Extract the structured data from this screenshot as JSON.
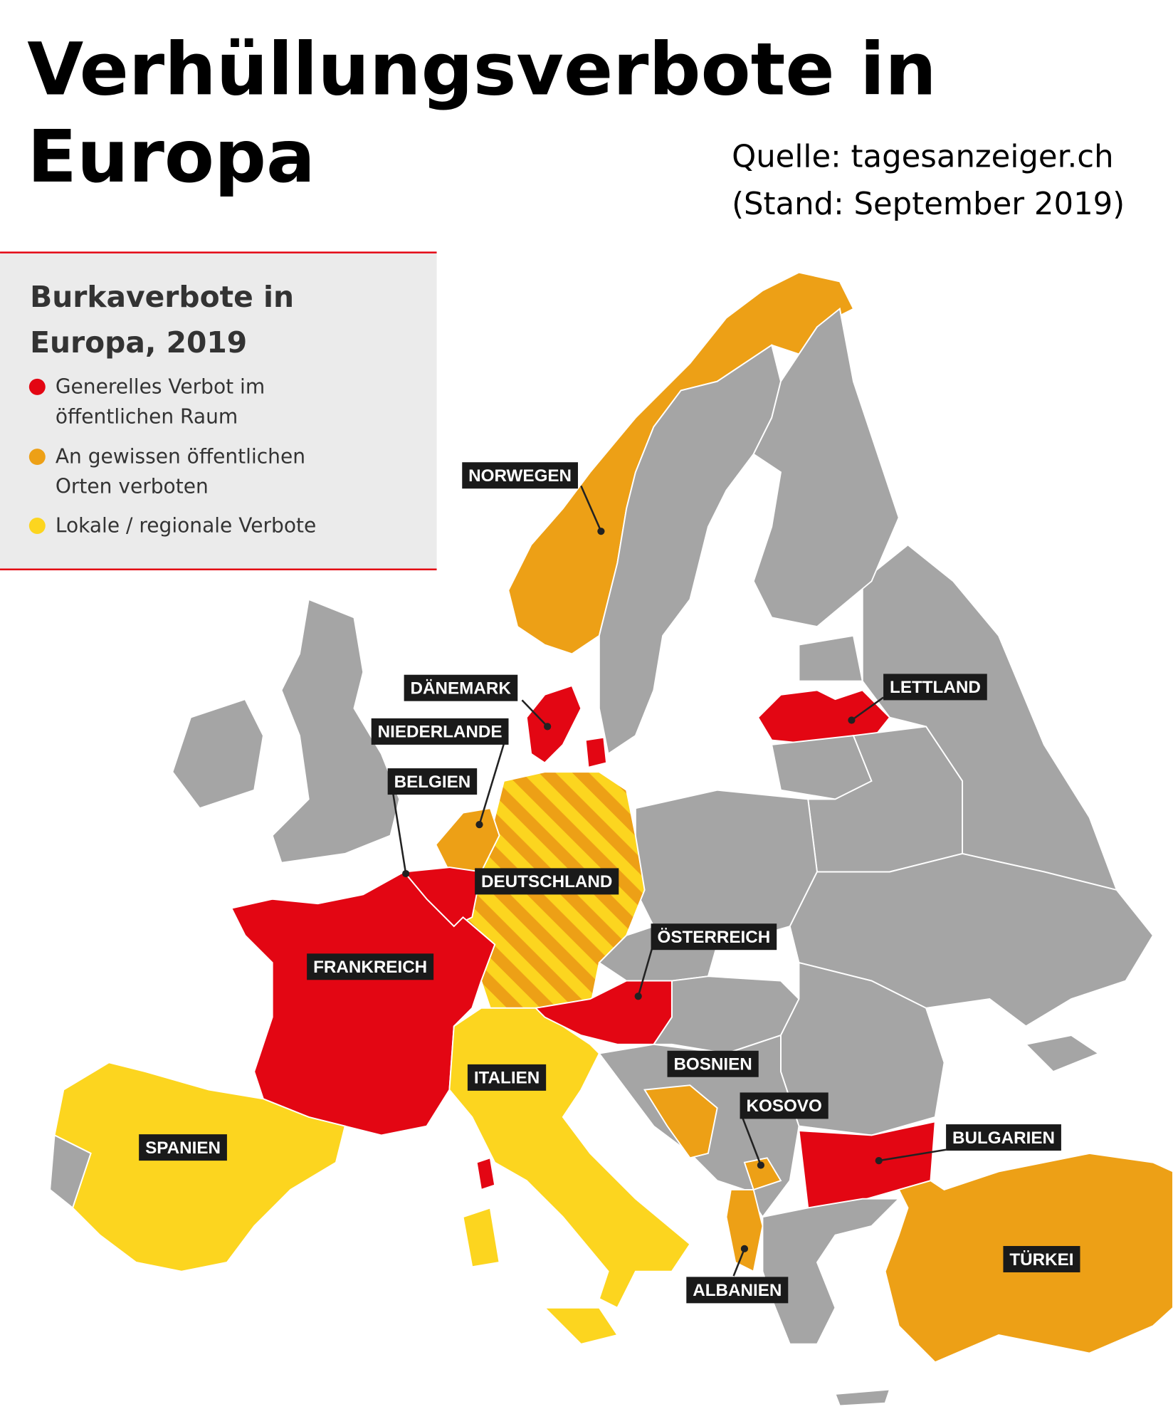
{
  "header": {
    "title": [
      "Verhüllungsverbote in",
      "Europa"
    ],
    "source": [
      "Quelle: tagesanzeiger.ch",
      "(Stand: September 2019)"
    ]
  },
  "legend": {
    "title": [
      "Burkaverbote in",
      "Europa, 2019"
    ],
    "items": [
      {
        "lines": [
          "Generelles Verbot im",
          "öffentlichen Raum"
        ],
        "color": "#e30613"
      },
      {
        "lines": [
          "An gewissen öffentlichen",
          "Orten verboten"
        ],
        "color": "#eda016"
      },
      {
        "lines": [
          "Lokale / regionale Verbote"
        ],
        "color": "#fcd51f"
      }
    ]
  },
  "labels": [
    "NORWEGEN",
    "DÄNEMARK",
    "NIEDERLANDE",
    "BELGIEN",
    "DEUTSCHLAND",
    "FRANKREICH",
    "ÖSTERREICH",
    "ITALIEN",
    "SPANIEN",
    "BOSNIEN",
    "KOSOVO",
    "BULGARIEN",
    "LETTLAND",
    "TÜRKEI",
    "ALBANIEN"
  ]
}
